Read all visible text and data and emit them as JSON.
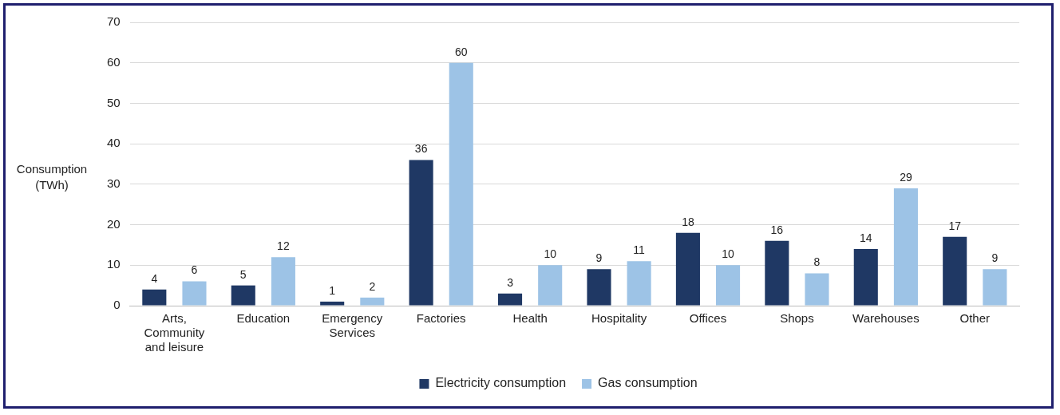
{
  "chart_data": {
    "type": "bar",
    "ylabel": "Consumption (TWh)",
    "categories": [
      "Arts, Community and leisure",
      "Education",
      "Emergency Services",
      "Factories",
      "Health",
      "Hospitality",
      "Offices",
      "Shops",
      "Warehouses",
      "Other"
    ],
    "series": [
      {
        "name": "Electricity consumption",
        "color": "#1f3864",
        "values": [
          4,
          5,
          1,
          36,
          3,
          9,
          18,
          16,
          14,
          17
        ]
      },
      {
        "name": "Gas consumption",
        "color": "#9dc3e6",
        "values": [
          6,
          12,
          2,
          60,
          10,
          11,
          10,
          8,
          29,
          9
        ]
      }
    ],
    "ylim": [
      0,
      70
    ],
    "yticks": [
      0,
      10,
      20,
      30,
      40,
      50,
      60,
      70
    ],
    "grid": "y",
    "legend": "bottom",
    "data_labels": true
  }
}
